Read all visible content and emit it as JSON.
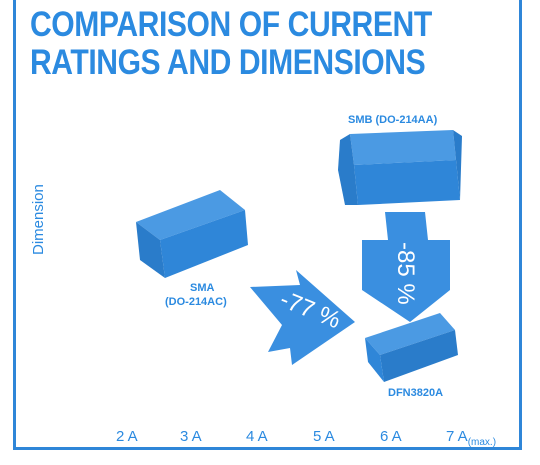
{
  "title": {
    "line1": "COMPARISON OF CURRENT",
    "line2": "RATINGS AND DIMENSIONS"
  },
  "axis": {
    "y_label": "Dimension",
    "x_ticks": [
      "2 A",
      "3 A",
      "4 A",
      "5 A",
      "6 A",
      "7 A"
    ],
    "x_max_suffix": "(max.)"
  },
  "packages": {
    "smb": {
      "label": "SMB (DO-214AA)"
    },
    "sma": {
      "label_line1": "SMA",
      "label_line2": "(DO-214AC)"
    },
    "dfn": {
      "label": "DFN3820A"
    }
  },
  "reductions": {
    "sma_to_dfn": "-77 %",
    "smb_to_dfn": "-85 %"
  },
  "colors": {
    "accent": "#2b8ae0",
    "package": "#2f86d8",
    "arrow": "#3a8fe0"
  }
}
